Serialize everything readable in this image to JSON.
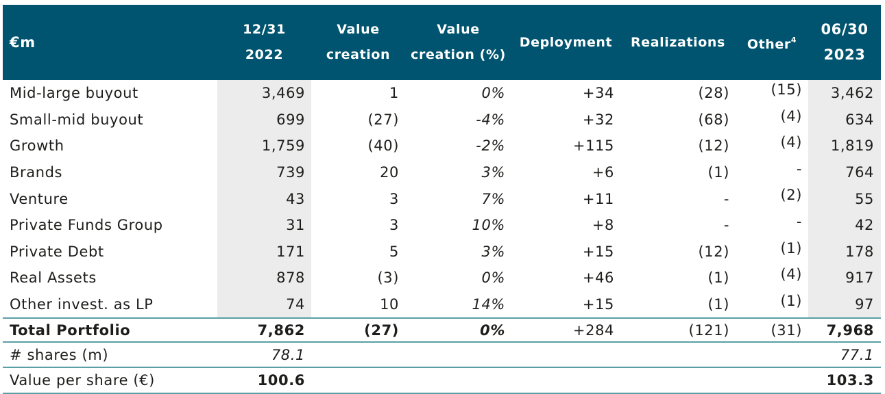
{
  "header": {
    "label": "€m",
    "c1": "12/31 2022",
    "c2": "Value creation",
    "c3": "Value creation (%)",
    "c4": "Deployment",
    "c5": "Realizations",
    "c6": "Other",
    "c6_sup": "4",
    "c7": "06/30 2023"
  },
  "rows": [
    {
      "label": "Mid-large buyout",
      "start": "3,469",
      "vc": "1",
      "vcp": "0%",
      "dep": "+34",
      "real": "(28)",
      "other": "(15)",
      "end": "3,462"
    },
    {
      "label": "Small-mid buyout",
      "start": "699",
      "vc": "(27)",
      "vcp": "-4%",
      "dep": "+32",
      "real": "(68)",
      "other": "(4)",
      "end": "634"
    },
    {
      "label": "Growth",
      "start": "1,759",
      "vc": "(40)",
      "vcp": "-2%",
      "dep": "+115",
      "real": "(12)",
      "other": "(4)",
      "end": "1,819"
    },
    {
      "label": "Brands",
      "start": "739",
      "vc": "20",
      "vcp": "3%",
      "dep": "+6",
      "real": "(1)",
      "other": "-",
      "end": "764"
    },
    {
      "label": "Venture",
      "start": "43",
      "vc": "3",
      "vcp": "7%",
      "dep": "+11",
      "real": "-",
      "other": "(2)",
      "end": "55"
    },
    {
      "label": "Private Funds Group",
      "start": "31",
      "vc": "3",
      "vcp": "10%",
      "dep": "+8",
      "real": "-",
      "other": "-",
      "end": "42"
    },
    {
      "label": "Private Debt",
      "start": "171",
      "vc": "5",
      "vcp": "3%",
      "dep": "+15",
      "real": "(12)",
      "other": "(1)",
      "end": "178"
    },
    {
      "label": "Real Assets",
      "start": "878",
      "vc": "(3)",
      "vcp": "0%",
      "dep": "+46",
      "real": "(1)",
      "other": "(4)",
      "end": "917"
    },
    {
      "label": "Other invest. as LP",
      "start": "74",
      "vc": "10",
      "vcp": "14%",
      "dep": "+15",
      "real": "(1)",
      "other": "(1)",
      "end": "97"
    }
  ],
  "total": {
    "label": "Total Portfolio",
    "start": "7,862",
    "vc": "(27)",
    "vcp": "0%",
    "dep": "+284",
    "real": "(121)",
    "other": "(31)",
    "end": "7,968"
  },
  "shares": {
    "label": "# shares (m)",
    "start": "78.1",
    "end": "77.1"
  },
  "vps": {
    "label": "Value per share (€)",
    "start": "100.6",
    "end": "103.3"
  }
}
